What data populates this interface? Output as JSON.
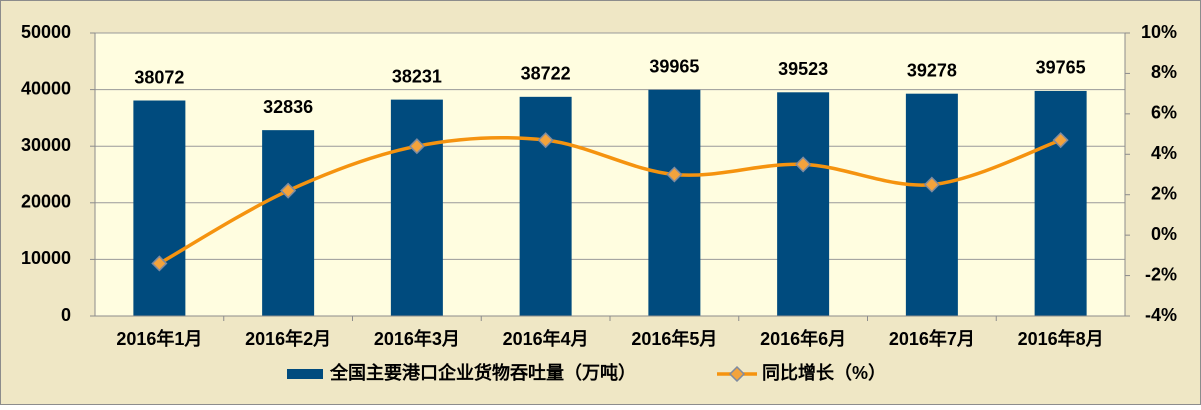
{
  "chart_data": {
    "type": "bar_line",
    "categories": [
      "2016年1月",
      "2016年2月",
      "2016年3月",
      "2016年4月",
      "2016年5月",
      "2016年6月",
      "2016年7月",
      "2016年8月"
    ],
    "series": [
      {
        "name": "全国主要港口企业货物吞吐量（万吨）",
        "type": "bar",
        "color": "#004b7e",
        "values": [
          38072,
          32836,
          38231,
          38722,
          39965,
          39523,
          39278,
          39765
        ]
      },
      {
        "name": "同比增长（%）",
        "type": "line",
        "axis": "y2",
        "color": "#f5930f",
        "values": [
          -1.4,
          2.2,
          4.4,
          4.7,
          3.0,
          3.5,
          2.5,
          4.7
        ]
      }
    ],
    "ylim": [
      0,
      50000
    ],
    "yticks": [
      0,
      10000,
      20000,
      30000,
      40000,
      50000
    ],
    "y2lim": [
      -4,
      10
    ],
    "y2ticks": [
      {
        "value": -4,
        "label": "-4%"
      },
      {
        "value": -2,
        "label": "-2%"
      },
      {
        "value": 0,
        "label": "0%"
      },
      {
        "value": 2,
        "label": "2%"
      },
      {
        "value": 4,
        "label": "4%"
      },
      {
        "value": 6,
        "label": "6%"
      },
      {
        "value": 8,
        "label": "8%"
      },
      {
        "value": 10,
        "label": "10%"
      }
    ],
    "grid": true,
    "legend": "bottom"
  }
}
